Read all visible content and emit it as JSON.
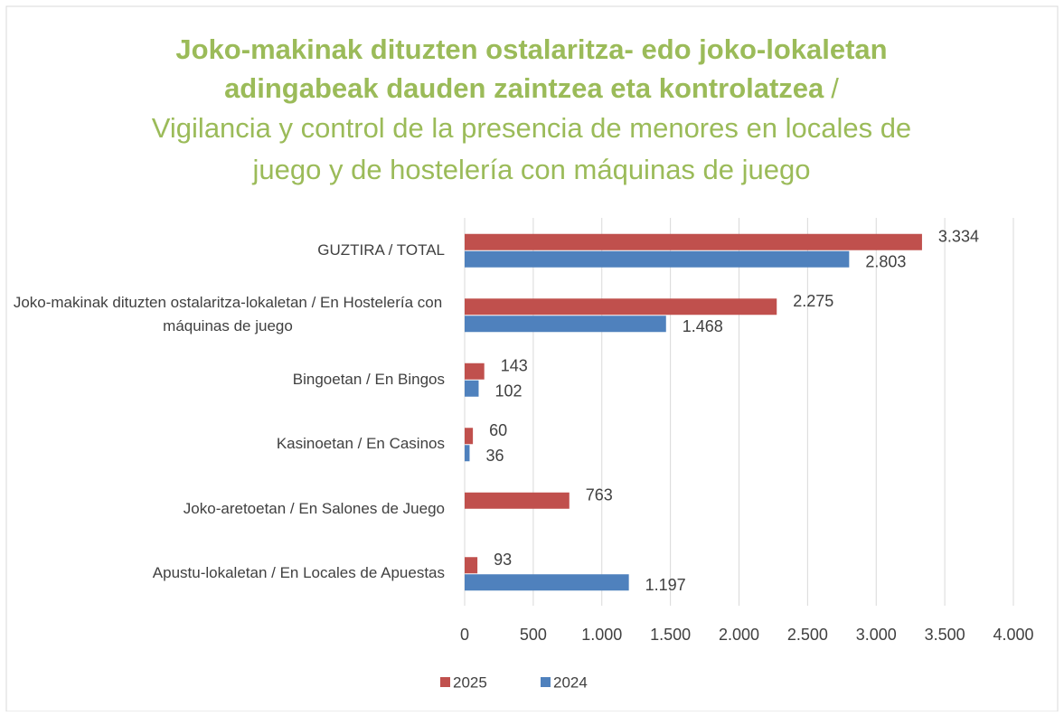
{
  "chart_data": {
    "type": "bar",
    "orientation": "horizontal",
    "title": [
      "Joko-makinak dituzten ostalaritza- edo joko-lokaletan",
      "adingabeak dauden zaintzea eta kontrolatzea",
      "/",
      "Vigilancia y control de la presencia de menores en locales de",
      "juego y de hostelería con máquinas de juego"
    ],
    "title_color": "#9bbb59",
    "categories": [
      "GUZTIRA / TOTAL",
      "Joko-makinak dituzten ostalaritza-lokaletan / En Hostelería con máquinas de juego",
      "Bingoetan / En Bingos",
      "Kasinoetan / En Casinos",
      "Joko-aretoetan / En Salones de Juego",
      "Apustu-lokaletan / En Locales de Apuestas"
    ],
    "series": [
      {
        "name": "2025",
        "color": "#c0504d",
        "values": [
          3334,
          2275,
          143,
          60,
          763,
          93
        ],
        "value_labels": [
          "3.334",
          "2.275",
          "143",
          "60",
          "763",
          "93"
        ]
      },
      {
        "name": "2024",
        "color": "#4f81bd",
        "values": [
          2803,
          1468,
          102,
          36,
          null,
          1197
        ],
        "value_labels": [
          "2.803",
          "1.468",
          "102",
          "36",
          null,
          "1.197"
        ]
      }
    ],
    "xlim": [
      0,
      4000
    ],
    "xticks": [
      0,
      500,
      {
        "value": 1000,
        "label": "1.000"
      },
      {
        "value": 1500,
        "label": "1.500"
      },
      {
        "value": 2000,
        "label": "2.000"
      },
      {
        "value": 2500,
        "label": "2.500"
      },
      {
        "value": 3000,
        "label": "3.000"
      },
      {
        "value": 3500,
        "label": "3.500"
      },
      {
        "value": 4000,
        "label": "4.000"
      }
    ],
    "grid": true,
    "legend": "bottom"
  }
}
